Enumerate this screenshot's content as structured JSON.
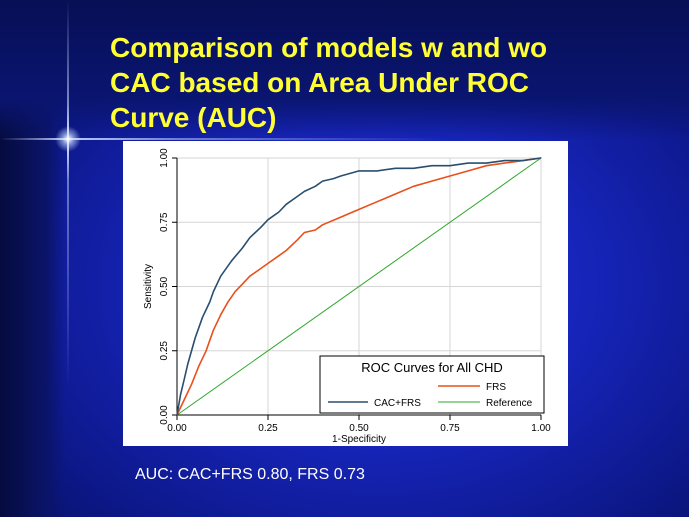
{
  "slide": {
    "title_lines": [
      "Comparison of models w and wo",
      "CAC based on Area Under ROC",
      "Curve (AUC)"
    ],
    "footer_text": "AUC: CAC+FRS 0.80, FRS 0.73",
    "colors": {
      "title": "#ffff33",
      "background": "#1624b8",
      "text": "#ffffff"
    }
  },
  "chart_data": {
    "type": "line",
    "title": "",
    "xlabel": "1-Specificity",
    "ylabel": "Sensitivity",
    "xlim": [
      0,
      1
    ],
    "ylim": [
      0,
      1
    ],
    "x_ticks": [
      "0.00",
      "0.25",
      "0.50",
      "0.75",
      "1.00"
    ],
    "y_ticks": [
      "0.00",
      "0.25",
      "0.50",
      "0.75",
      "1.00"
    ],
    "grid": true,
    "legend": {
      "title": "ROC Curves for All CHD",
      "placement": "bottom-right",
      "entries": [
        "CAC+FRS",
        "FRS",
        "Reference"
      ]
    },
    "series": [
      {
        "name": "CAC+FRS",
        "color": "#2a4e6e",
        "x": [
          0,
          0.01,
          0.02,
          0.03,
          0.05,
          0.07,
          0.09,
          0.1,
          0.12,
          0.15,
          0.18,
          0.2,
          0.23,
          0.25,
          0.28,
          0.3,
          0.33,
          0.35,
          0.38,
          0.4,
          0.43,
          0.45,
          0.5,
          0.55,
          0.6,
          0.65,
          0.7,
          0.75,
          0.8,
          0.85,
          0.9,
          0.95,
          1.0
        ],
        "y": [
          0,
          0.08,
          0.14,
          0.2,
          0.3,
          0.38,
          0.44,
          0.48,
          0.54,
          0.6,
          0.65,
          0.69,
          0.73,
          0.76,
          0.79,
          0.82,
          0.85,
          0.87,
          0.89,
          0.91,
          0.92,
          0.93,
          0.95,
          0.95,
          0.96,
          0.96,
          0.97,
          0.97,
          0.98,
          0.98,
          0.99,
          0.99,
          1.0
        ]
      },
      {
        "name": "FRS",
        "color": "#e8501a",
        "x": [
          0,
          0.02,
          0.04,
          0.06,
          0.08,
          0.1,
          0.12,
          0.14,
          0.16,
          0.18,
          0.2,
          0.22,
          0.25,
          0.28,
          0.3,
          0.33,
          0.35,
          0.38,
          0.4,
          0.45,
          0.5,
          0.55,
          0.6,
          0.65,
          0.7,
          0.75,
          0.8,
          0.85,
          0.9,
          0.95,
          1.0
        ],
        "y": [
          0,
          0.06,
          0.12,
          0.19,
          0.25,
          0.33,
          0.39,
          0.44,
          0.48,
          0.51,
          0.54,
          0.56,
          0.59,
          0.62,
          0.64,
          0.68,
          0.71,
          0.72,
          0.74,
          0.77,
          0.8,
          0.83,
          0.86,
          0.89,
          0.91,
          0.93,
          0.95,
          0.97,
          0.98,
          0.99,
          1.0
        ]
      },
      {
        "name": "Reference",
        "color": "#2ea82e",
        "x": [
          0,
          1
        ],
        "y": [
          0,
          1
        ]
      }
    ]
  }
}
